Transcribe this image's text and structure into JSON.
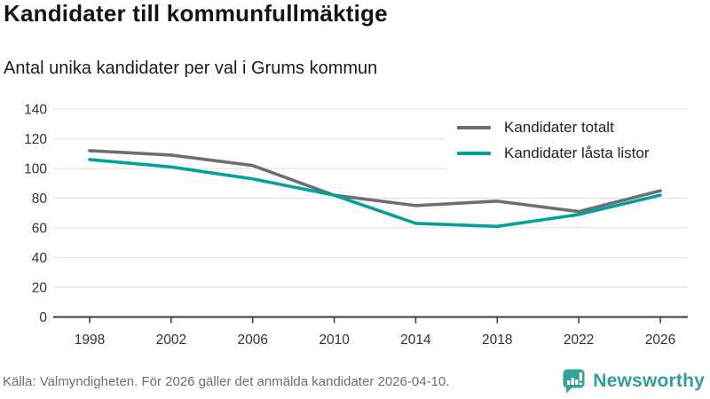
{
  "header": {
    "title": "Kandidater till kommunfullmäktige",
    "subtitle": "Antal unika kandidater per val i Grums kommun"
  },
  "chart_data": {
    "type": "line",
    "x": [
      1998,
      2002,
      2006,
      2010,
      2014,
      2018,
      2022,
      2026
    ],
    "series": [
      {
        "name": "Kandidater totalt",
        "color": "#6e6e72",
        "values": [
          112,
          109,
          102,
          82,
          75,
          78,
          71,
          85
        ]
      },
      {
        "name": "Kandidater låsta listor",
        "color": "#00a29b",
        "values": [
          106,
          101,
          93,
          82,
          63,
          61,
          69,
          82
        ]
      }
    ],
    "title": "Kandidater till kommunfullmäktige",
    "subtitle": "Antal unika kandidater per val i Grums kommun",
    "xlabel": "",
    "ylabel": "",
    "ylim": [
      0,
      140
    ],
    "yticks": [
      0,
      20,
      40,
      60,
      80,
      100,
      120,
      140
    ],
    "grid": true,
    "legend_position": "top-right"
  },
  "footer": {
    "source": "Källa: Valmyndigheten. För 2026 gäller det anmälda kandidater 2026-04-10.",
    "brand": "Newsworthy"
  },
  "colors": {
    "grid": "#e3e3e3",
    "axis": "#3a3a3a",
    "tick_label": "#333333",
    "title": "#141414",
    "footer_text": "#6e6e6e",
    "brand_teal": "#339e97",
    "series_total": "#6e6e72",
    "series_locked": "#00a29b"
  }
}
